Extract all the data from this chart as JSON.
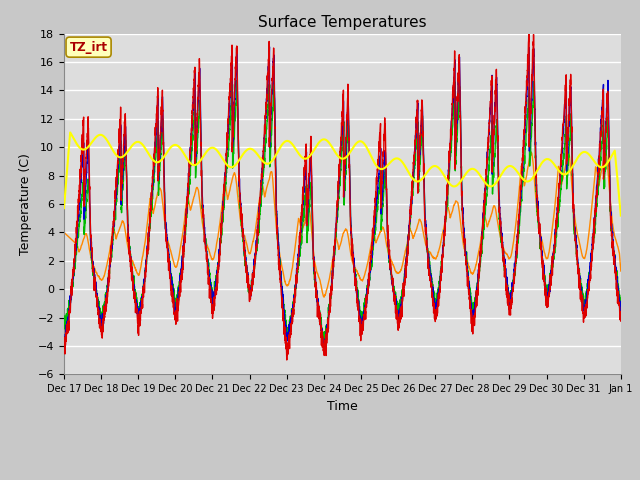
{
  "title": "Surface Temperatures",
  "xlabel": "Time",
  "ylabel": "Temperature (C)",
  "ylim": [
    -6,
    18
  ],
  "xtick_labels": [
    "Dec 17",
    "Dec 18",
    "Dec 19",
    "Dec 20",
    "Dec 21",
    "Dec 22",
    "Dec 23",
    "Dec 24",
    "Dec 25",
    "Dec 26",
    "Dec 27",
    "Dec 28",
    "Dec 29",
    "Dec 30",
    "Dec 31",
    "Jan 1"
  ],
  "yticks": [
    -6,
    -4,
    -2,
    0,
    2,
    4,
    6,
    8,
    10,
    12,
    14,
    16,
    18
  ],
  "series": {
    "IRT Ground": {
      "color": "#dd0000",
      "lw": 1.0
    },
    "IRT Canopy": {
      "color": "#0000cc",
      "lw": 1.0
    },
    "Floor Tair": {
      "color": "#00bb00",
      "lw": 1.0
    },
    "Tower TAir": {
      "color": "#ff8800",
      "lw": 1.0
    },
    "TsoilD_2cm": {
      "color": "#ffff00",
      "lw": 1.5
    }
  },
  "bg_color": "#dddddd",
  "grid_color": "#ffffff",
  "fig_bg": "#c8c8c8",
  "annotation_text": "TZ_irt",
  "annotation_color": "#aa0000",
  "annotation_bg": "#ffffbb",
  "annotation_border": "#aa8800"
}
